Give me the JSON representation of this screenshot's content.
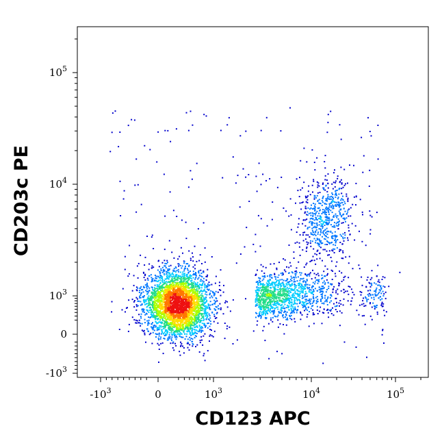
{
  "chart_data": {
    "type": "scatter",
    "subtype": "flow-cytometry density dot plot (biexponential axes)",
    "title": "",
    "xlabel": "CD123 APC",
    "ylabel": "CD203c PE",
    "x_scale": "biexponential",
    "y_scale": "biexponential",
    "xlim": [
      -2000,
      200000
    ],
    "ylim": [
      -1100,
      250000
    ],
    "x_ticks": [
      {
        "value": -1000,
        "base": "-10",
        "exp": "3"
      },
      {
        "value": 0,
        "base": "0",
        "exp": ""
      },
      {
        "value": 1000,
        "base": "10",
        "exp": "3"
      },
      {
        "value": 10000,
        "base": "10",
        "exp": "4"
      },
      {
        "value": 100000,
        "base": "10",
        "exp": "5"
      }
    ],
    "y_ticks": [
      {
        "value": -1000,
        "base": "-10",
        "exp": "3"
      },
      {
        "value": 0,
        "base": "0",
        "exp": ""
      },
      {
        "value": 1000,
        "base": "10",
        "exp": "3"
      },
      {
        "value": 10000,
        "base": "10",
        "exp": "4"
      },
      {
        "value": 100000,
        "base": "10",
        "exp": "5"
      }
    ],
    "grid": false,
    "legend": "none",
    "colormap": [
      "#0000cc",
      "#0077ff",
      "#00ccff",
      "#22dd88",
      "#aaff00",
      "#ffdd00",
      "#ff7700",
      "#ee1111"
    ],
    "populations": [
      {
        "center": {
          "x": 180,
          "y": 700
        },
        "count": 3500,
        "density": "very high",
        "spread": "large"
      },
      {
        "center": {
          "x": 3000,
          "y": 1000
        },
        "count": 1200,
        "density": "medium",
        "spread": "horizontal tail"
      },
      {
        "center": {
          "x": 15000,
          "y": 5000
        },
        "count": 600,
        "density": "medium",
        "spread": "medium"
      },
      {
        "center": {
          "x": 55000,
          "y": 1100
        },
        "count": 110,
        "density": "low",
        "spread": "small"
      }
    ]
  }
}
